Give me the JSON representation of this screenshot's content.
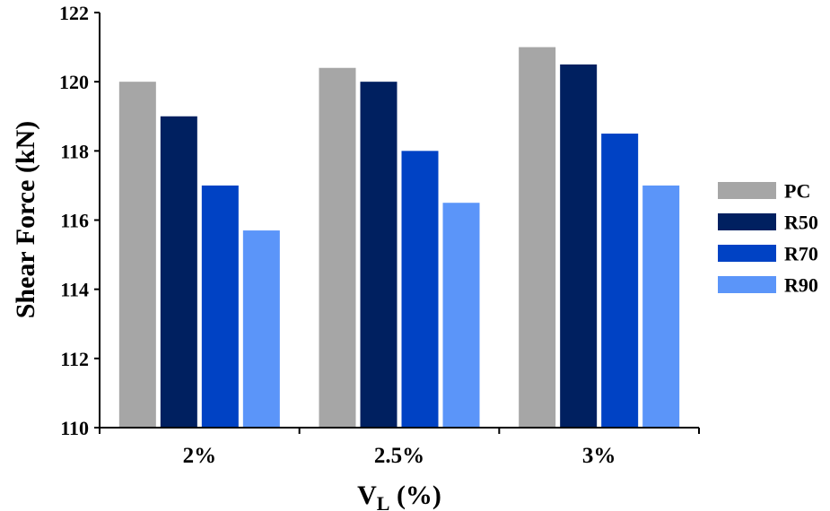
{
  "chart_data": {
    "type": "bar",
    "categories": [
      "2%",
      "2.5%",
      "3%"
    ],
    "series": [
      {
        "name": "PC",
        "color": "#a6a6a6",
        "values": [
          120.0,
          120.4,
          121.0
        ]
      },
      {
        "name": "R50",
        "color": "#002060",
        "values": [
          119.0,
          120.0,
          120.5
        ]
      },
      {
        "name": "R70",
        "color": "#0042c4",
        "values": [
          117.0,
          118.0,
          118.5
        ]
      },
      {
        "name": "R90",
        "color": "#5b95f9",
        "values": [
          115.7,
          116.5,
          117.0
        ]
      }
    ],
    "title": "",
    "ylabel": "Shear Force (kN)",
    "xlabel": {
      "main": "V",
      "subscript": "L",
      "suffix": " (%)"
    },
    "ylim": [
      110,
      122
    ],
    "yticks": [
      110,
      112,
      114,
      116,
      118,
      120,
      122
    ],
    "grid": false,
    "legend_position": "right"
  }
}
